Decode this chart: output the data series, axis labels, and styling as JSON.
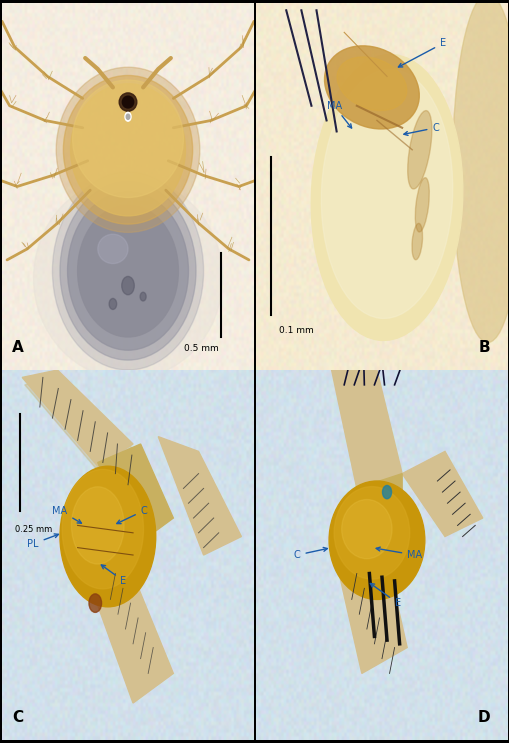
{
  "figure_width": 5.1,
  "figure_height": 7.43,
  "dpi": 100,
  "panel_bg": {
    "A": "#f5efe0",
    "B": "#efe8cc",
    "C": "#ccdce8",
    "D": "#ccdce8"
  },
  "border_color": "#000000",
  "label_color": "#000000",
  "ann_color": "#1a5baa",
  "label_fontsize": 11,
  "ann_fontsize": 7,
  "scale_text": {
    "A": "0.5 mm",
    "B": "0.1 mm",
    "C": "0.25 mm"
  }
}
